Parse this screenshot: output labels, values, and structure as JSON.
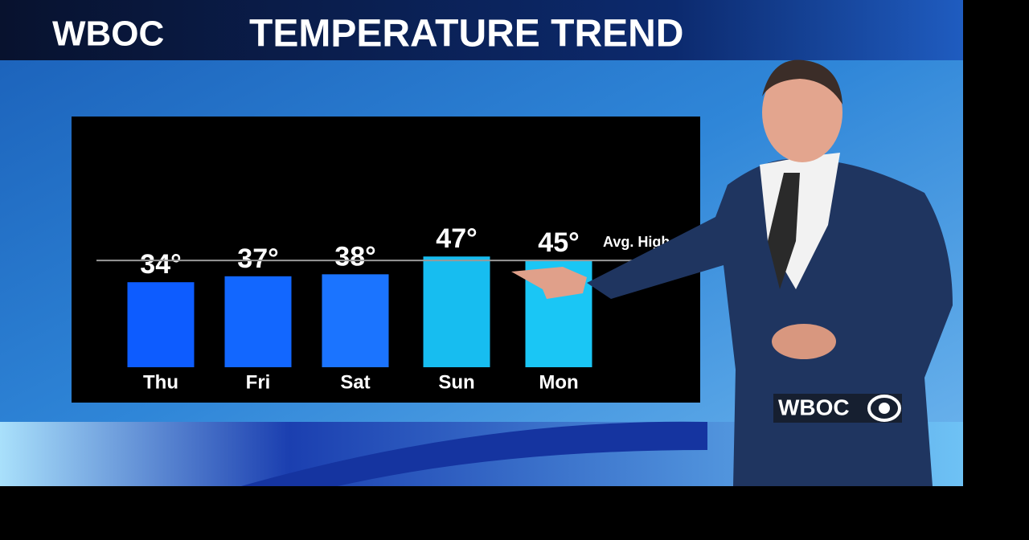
{
  "header": {
    "station": "WBOC",
    "title": "TEMPERATURE TREND"
  },
  "chart_data": {
    "type": "bar",
    "categories": [
      "Thu",
      "Fri",
      "Sat",
      "Sun",
      "Mon"
    ],
    "values": [
      34,
      37,
      38,
      47,
      45
    ],
    "value_labels": [
      "34°",
      "37°",
      "38°",
      "47°",
      "45°"
    ],
    "colors": [
      "#0d5cff",
      "#1267ff",
      "#1b74ff",
      "#17bdf0",
      "#1ac6f5"
    ],
    "ylim": [
      -9,
      80
    ],
    "reference_line": {
      "label": "Avg. High",
      "value": 45
    }
  },
  "logo": "WBOC"
}
